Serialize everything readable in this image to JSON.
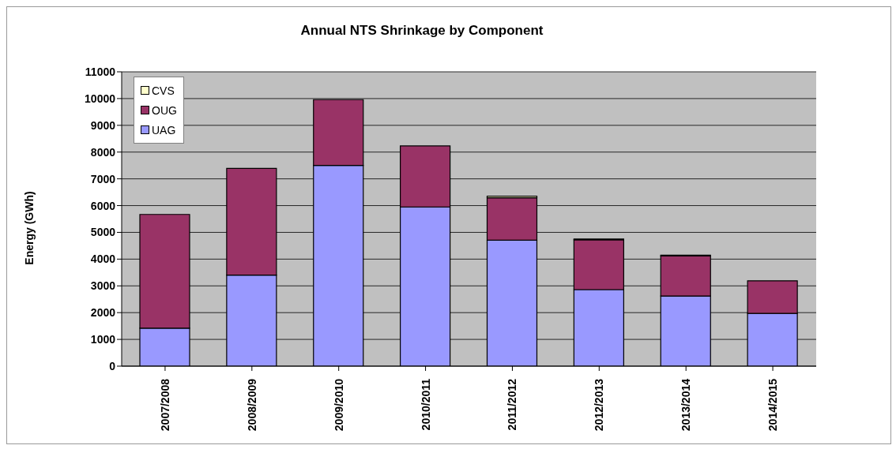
{
  "chart_data": {
    "type": "bar",
    "title": "Annual NTS Shrinkage by Component",
    "ylabel": "Energy (GWh)",
    "categories": [
      "2007/2008",
      "2008/2009",
      "2009/2010",
      "2010/2011",
      "2011/2012",
      "2012/2013",
      "2013/2014",
      "2014/2015"
    ],
    "series": [
      {
        "name": "UAG",
        "color": "#9999ff",
        "values": [
          1420,
          3400,
          7500,
          5950,
          4710,
          2860,
          2620,
          1970
        ]
      },
      {
        "name": "OUG",
        "color": "#993366",
        "values": [
          4250,
          3990,
          2460,
          2280,
          1580,
          1860,
          1500,
          1220
        ]
      },
      {
        "name": "CVS",
        "color": "#ffffcc",
        "values": [
          0,
          0,
          0,
          0,
          60,
          30,
          30,
          0
        ]
      }
    ],
    "stacked": true,
    "ylim": [
      0,
      11000
    ],
    "yticks": [
      0,
      1000,
      2000,
      3000,
      4000,
      5000,
      6000,
      7000,
      8000,
      9000,
      10000,
      11000
    ],
    "grid": "y",
    "legend": "top left"
  }
}
